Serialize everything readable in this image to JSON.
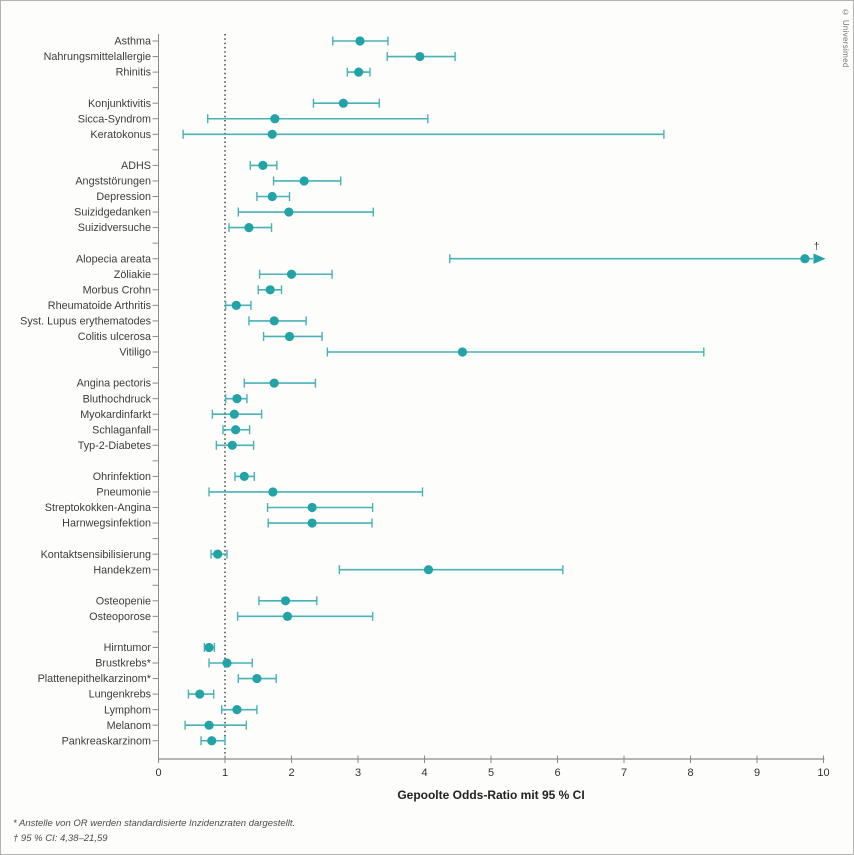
{
  "figure": {
    "copyright": "© Universimed",
    "xlabel": "Gepoolte Odds-Ratio mit 95 % CI",
    "footnotes": [
      "* Anstelle von OR werden standardisierte Inzidenzraten dargestellt.",
      "† 95 % CI: 4,38–21,59"
    ]
  },
  "chart_data": {
    "type": "forest",
    "title": "",
    "xlabel": "Gepoolte Odds-Ratio mit 95 % CI",
    "xlim": [
      0,
      10
    ],
    "x_ticks": [
      0,
      1,
      2,
      3,
      4,
      5,
      6,
      7,
      8,
      9,
      10
    ],
    "reference_line": 1,
    "grid": false,
    "marker_color": "#21a3a8",
    "line_color": "#48b2b6",
    "axis_color": "#8c8c8c",
    "groups": [
      [
        {
          "label": "Asthma",
          "or": 3.03,
          "ci": [
            2.62,
            3.45
          ]
        },
        {
          "label": "Nahrungsmittelallergie",
          "or": 3.93,
          "ci": [
            3.44,
            4.46
          ]
        },
        {
          "label": "Rhinitis",
          "or": 3.01,
          "ci": [
            2.84,
            3.18
          ]
        }
      ],
      [
        {
          "label": "Konjunktivitis",
          "or": 2.78,
          "ci": [
            2.33,
            3.32
          ]
        },
        {
          "label": "Sicca-Syndrom",
          "or": 1.75,
          "ci": [
            0.74,
            4.05
          ]
        },
        {
          "label": "Keratokonus",
          "or": 1.71,
          "ci": [
            0.37,
            7.6
          ]
        }
      ],
      [
        {
          "label": "ADHS",
          "or": 1.57,
          "ci": [
            1.38,
            1.78
          ]
        },
        {
          "label": "Angststörungen",
          "or": 2.19,
          "ci": [
            1.73,
            2.74
          ]
        },
        {
          "label": "Depression",
          "or": 1.71,
          "ci": [
            1.48,
            1.97
          ]
        },
        {
          "label": "Suizidgedanken",
          "or": 1.96,
          "ci": [
            1.2,
            3.23
          ]
        },
        {
          "label": "Suizidversuche",
          "or": 1.36,
          "ci": [
            1.06,
            1.7
          ]
        }
      ],
      [
        {
          "label": "Alopecia areata",
          "or": 9.72,
          "ci": [
            4.38,
            21.59
          ],
          "arrow": true,
          "dagger": "†"
        },
        {
          "label": "Zöliakie",
          "or": 2.0,
          "ci": [
            1.52,
            2.61
          ]
        },
        {
          "label": "Morbus Crohn",
          "or": 1.68,
          "ci": [
            1.5,
            1.85
          ]
        },
        {
          "label": "Rheumatoide Arthritis",
          "or": 1.17,
          "ci": [
            1.01,
            1.39
          ]
        },
        {
          "label": "Syst. Lupus erythematodes",
          "or": 1.74,
          "ci": [
            1.36,
            2.22
          ]
        },
        {
          "label": "Colitis ulcerosa",
          "or": 1.97,
          "ci": [
            1.58,
            2.46
          ]
        },
        {
          "label": "Vitiligo",
          "or": 4.57,
          "ci": [
            2.54,
            8.2
          ]
        }
      ],
      [
        {
          "label": "Angina pectoris",
          "or": 1.74,
          "ci": [
            1.29,
            2.36
          ]
        },
        {
          "label": "Bluthochdruck",
          "or": 1.18,
          "ci": [
            1.01,
            1.33
          ]
        },
        {
          "label": "Myokardinfarkt",
          "or": 1.14,
          "ci": [
            0.81,
            1.55
          ]
        },
        {
          "label": "Schlaganfall",
          "or": 1.16,
          "ci": [
            0.97,
            1.37
          ]
        },
        {
          "label": "Typ-2-Diabetes",
          "or": 1.11,
          "ci": [
            0.87,
            1.43
          ]
        }
      ],
      [
        {
          "label": "Ohrinfektion",
          "or": 1.29,
          "ci": [
            1.15,
            1.44
          ]
        },
        {
          "label": "Pneumonie",
          "or": 1.72,
          "ci": [
            0.76,
            3.97
          ]
        },
        {
          "label": "Streptokokken-Angina",
          "or": 2.31,
          "ci": [
            1.64,
            3.22
          ]
        },
        {
          "label": "Harnwegsinfektion",
          "or": 2.31,
          "ci": [
            1.65,
            3.21
          ]
        }
      ],
      [
        {
          "label": "Kontaktsensibilisierung",
          "or": 0.89,
          "ci": [
            0.79,
            1.03
          ]
        },
        {
          "label": "Handekzem",
          "or": 4.06,
          "ci": [
            2.72,
            6.08
          ]
        }
      ],
      [
        {
          "label": "Osteopenie",
          "or": 1.91,
          "ci": [
            1.51,
            2.38
          ]
        },
        {
          "label": "Osteoporose",
          "or": 1.94,
          "ci": [
            1.19,
            3.22
          ]
        }
      ],
      [
        {
          "label": "Hirntumor",
          "or": 0.76,
          "ci": [
            0.69,
            0.84
          ]
        },
        {
          "label": "Brustkrebs*",
          "or": 1.03,
          "ci": [
            0.76,
            1.41
          ]
        },
        {
          "label": "Plattenepithelkarzinom*",
          "or": 1.48,
          "ci": [
            1.2,
            1.77
          ]
        },
        {
          "label": "Lungenkrebs",
          "or": 0.62,
          "ci": [
            0.45,
            0.83
          ]
        },
        {
          "label": "Lymphom",
          "or": 1.18,
          "ci": [
            0.95,
            1.48
          ]
        },
        {
          "label": "Melanom",
          "or": 0.76,
          "ci": [
            0.4,
            1.32
          ]
        },
        {
          "label": "Pankreaskarzinom",
          "or": 0.8,
          "ci": [
            0.64,
            1.0
          ]
        }
      ]
    ]
  }
}
